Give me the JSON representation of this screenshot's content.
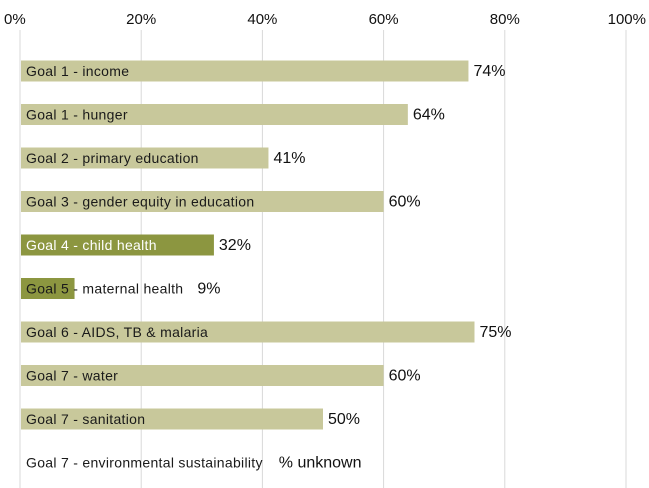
{
  "chart_data": {
    "type": "bar",
    "orientation": "horizontal",
    "xlim": [
      0,
      100
    ],
    "x_ticks": [
      "0%",
      "20%",
      "40%",
      "60%",
      "80%",
      "100%"
    ],
    "axis_position": "top",
    "grid": true,
    "categories": [
      "Goal 1 - income",
      "Goal 1 - hunger",
      "Goal 2 - primary education",
      "Goal 3 - gender equity in education",
      "Goal 4 - child health",
      "Goal 5 - maternal health",
      "Goal 6 - AIDS, TB & malaria",
      "Goal 7 - water",
      "Goal 7 - sanitation",
      "Goal 7 - environmental sustainability"
    ],
    "values": [
      74,
      64,
      41,
      60,
      32,
      9,
      75,
      60,
      50,
      null
    ],
    "value_labels": [
      "74%",
      "64%",
      "41%",
      "60%",
      "32%",
      "9%",
      "75%",
      "60%",
      "50%",
      "% unknown"
    ],
    "highlighted": [
      false,
      false,
      false,
      false,
      true,
      true,
      false,
      false,
      false,
      false
    ],
    "colors": {
      "bar": "#c8c89b",
      "bar_highlight": "#8c9640",
      "grid": "#d9d9d9"
    }
  }
}
